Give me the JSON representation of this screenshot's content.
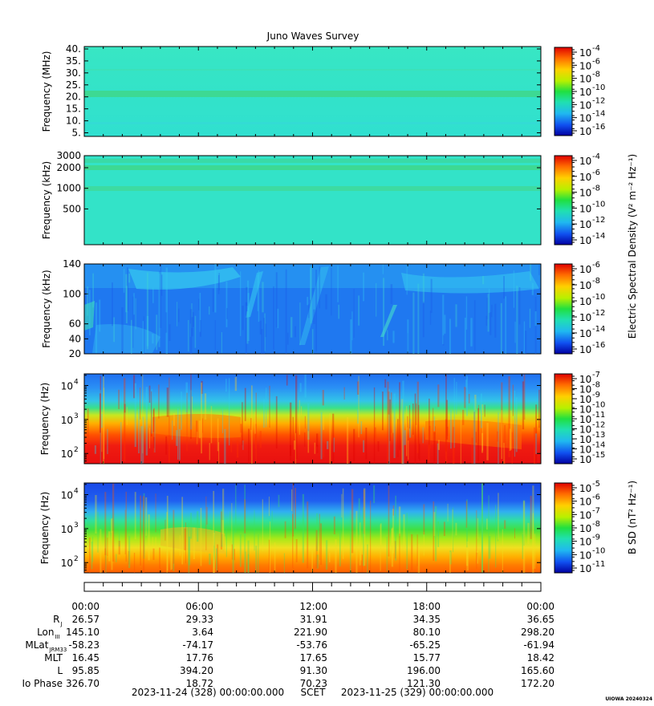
{
  "chart_data": [
    {
      "type": "heatmap",
      "title": "Juno Waves Survey",
      "ylabel": "Frequency (MHz)",
      "yticks": [
        "40.",
        "35.",
        "30.",
        "25.",
        "20.",
        "15.",
        "10.",
        "5."
      ],
      "ylim": [
        3.5,
        41
      ],
      "colorbar_ticks": [
        "-4",
        "-6",
        "-8",
        "-10",
        "-12",
        "-14",
        "-16"
      ],
      "colorbar_base": "10"
    },
    {
      "type": "heatmap",
      "ylabel": "Frequency (kHz)",
      "yticks": [
        "3000",
        "2000",
        "1000",
        "500"
      ],
      "ylim": [
        150,
        3000
      ],
      "colorbar_ticks": [
        "-4",
        "-6",
        "-8",
        "-10",
        "-12",
        "-14"
      ],
      "colorbar_base": "10"
    },
    {
      "type": "heatmap",
      "ylabel": "Frequency (kHz)",
      "yticks": [
        "140",
        "100",
        "60",
        "40",
        "20"
      ],
      "ylim": [
        20,
        140
      ],
      "colorbar_ticks": [
        "-6",
        "-8",
        "-10",
        "-12",
        "-14",
        "-16"
      ],
      "colorbar_base": "10"
    },
    {
      "type": "heatmap",
      "ylabel": "Frequency (Hz)",
      "yticks_exp": [
        "4",
        "3",
        "2"
      ],
      "ylim": [
        50,
        22000
      ],
      "colorbar_ticks": [
        "-7",
        "-8",
        "-9",
        "-10",
        "-11",
        "-12",
        "-13",
        "-14",
        "-15"
      ],
      "colorbar_base": "10"
    },
    {
      "type": "heatmap",
      "ylabel": "Frequency (Hz)",
      "yticks_exp": [
        "4",
        "3",
        "2"
      ],
      "ylim": [
        50,
        22000
      ],
      "colorbar_ticks": [
        "-5",
        "-6",
        "-7",
        "-8",
        "-9",
        "-10",
        "-11"
      ],
      "colorbar_base": "10"
    }
  ],
  "colorbar_label_e": "Electric Spectral Density (V² m⁻² Hz⁻¹)",
  "colorbar_label_b": "B SD (nT² Hz⁻¹)",
  "time_labels": [
    "00:00",
    "06:00",
    "12:00",
    "18:00",
    "00:00"
  ],
  "ephemeris": [
    {
      "label": "R",
      "sub": "J",
      "values": [
        "26.57",
        "29.33",
        "31.91",
        "34.35",
        "36.65"
      ]
    },
    {
      "label": "Lon",
      "sub": "III",
      "values": [
        "145.10",
        "3.64",
        "221.90",
        "80.10",
        "298.20"
      ]
    },
    {
      "label": "MLat",
      "sub": "JRM33",
      "values": [
        "-58.23",
        "-74.17",
        "-53.76",
        "-65.25",
        "-61.94"
      ]
    },
    {
      "label": "MLT",
      "sub": "",
      "values": [
        "16.45",
        "17.76",
        "17.65",
        "15.77",
        "18.42"
      ]
    },
    {
      "label": "L",
      "sub": "",
      "values": [
        "95.85",
        "394.20",
        "91.30",
        "196.00",
        "165.60"
      ]
    },
    {
      "label": "Io Phase",
      "sub": "",
      "values": [
        "326.70",
        "18.72",
        "70.23",
        "121.30",
        "172.20"
      ]
    }
  ],
  "footer": {
    "start": "2023-11-24 (328) 00:00:00.000",
    "scet": "SCET",
    "end": "2023-11-25 (329) 00:00:00.000",
    "stamp": "UIOWA 20240324"
  },
  "colors": {
    "bg_cyan": "#33e6c8",
    "band_green": "#4bd97a",
    "bright_green": "#2ee02e",
    "blue": "#1f73f0",
    "light_blue": "#35b8f5",
    "yellow": "#f5e020",
    "orange": "#ff8c00",
    "red": "#e81414"
  }
}
